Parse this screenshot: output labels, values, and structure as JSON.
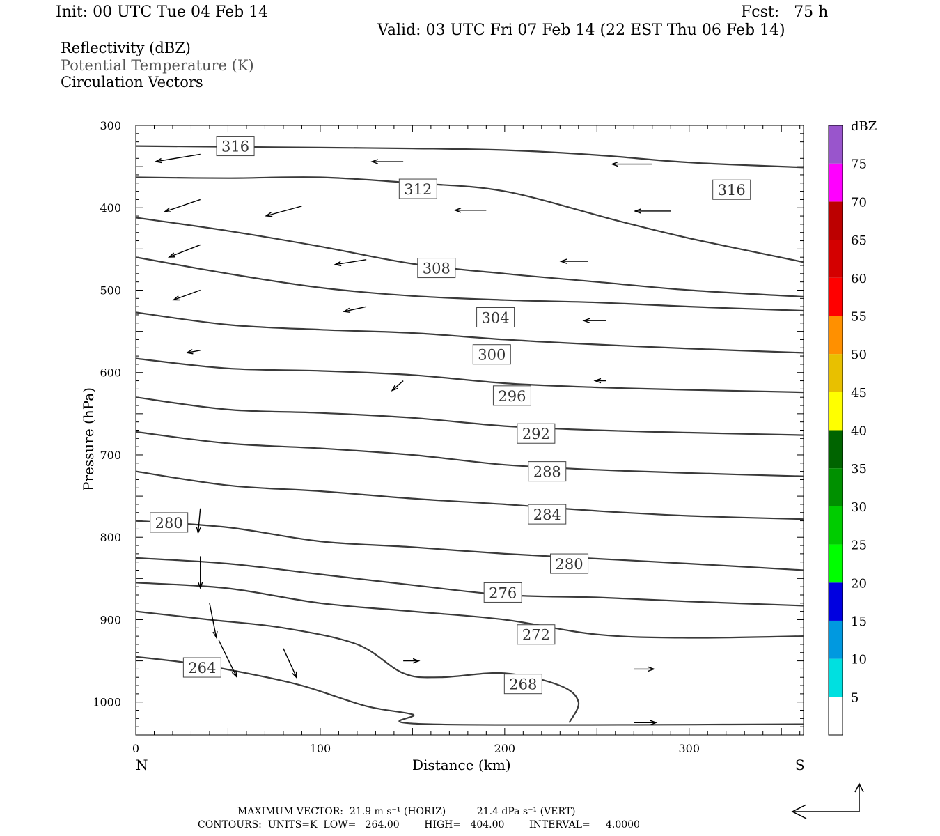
{
  "header": {
    "init": "Init: 00 UTC Tue 04 Feb 14",
    "fcst": "Fcst:   75 h",
    "valid": "Valid: 03 UTC Fri 07 Feb 14 (22 EST Thu 06 Feb 14)"
  },
  "legend_lines": [
    {
      "text": "Reflectivity (dBZ)",
      "color": "#000000"
    },
    {
      "text": "Potential Temperature (K)",
      "color": "#555555"
    },
    {
      "text": "Circulation Vectors",
      "color": "#000000"
    }
  ],
  "footer": {
    "max_vector": "MAXIMUM VECTOR:  21.9 m s⁻¹ (HORIZ)          21.4 dPa s⁻¹ (VERT)",
    "contours": "CONTOURS:  UNITS=K  LOW=   264.00        HIGH=   404.00        INTERVAL=     4.0000"
  },
  "chart_data": {
    "type": "cross-section",
    "xlabel": "Distance (km)",
    "ylabel": "Pressure (hPa)",
    "x_ticks": [
      0,
      100,
      200,
      300
    ],
    "y_ticks": [
      300,
      400,
      500,
      600,
      700,
      800,
      900,
      1000
    ],
    "xlim": [
      0,
      362
    ],
    "ylim": [
      1040,
      300
    ],
    "x_end_labels": {
      "left": "N",
      "right": "S"
    },
    "colorbar": {
      "title": "dBZ",
      "labels": [
        "5",
        "10",
        "15",
        "20",
        "25",
        "30",
        "35",
        "40",
        "45",
        "50",
        "55",
        "60",
        "65",
        "70",
        "75"
      ],
      "colors": [
        "#00e0e0",
        "#0099e0",
        "#0000e0",
        "#00ff00",
        "#00cc00",
        "#009000",
        "#006400",
        "#ffff00",
        "#e8c000",
        "#ff9000",
        "#ff0000",
        "#d40000",
        "#bc0000",
        "#ff00ff",
        "#9955cc"
      ]
    },
    "isentropes": [
      {
        "label": "316",
        "labels_shown": [
          {
            "x": 54,
            "p": 325
          },
          {
            "x": 323,
            "p": 378
          }
        ],
        "points": [
          [
            0,
            325
          ],
          [
            50,
            326
          ],
          [
            100,
            327
          ],
          [
            150,
            328
          ],
          [
            200,
            330
          ],
          [
            250,
            336
          ],
          [
            300,
            345
          ],
          [
            362,
            351
          ]
        ]
      },
      {
        "label": "312",
        "labels_shown": [
          {
            "x": 153,
            "p": 377
          }
        ],
        "points": [
          [
            0,
            363
          ],
          [
            50,
            364
          ],
          [
            100,
            363
          ],
          [
            150,
            370
          ],
          [
            200,
            380
          ],
          [
            260,
            415
          ],
          [
            300,
            437
          ],
          [
            362,
            466
          ]
        ]
      },
      {
        "label": "308",
        "labels_shown": [
          {
            "x": 163,
            "p": 473
          }
        ],
        "points": [
          [
            0,
            412
          ],
          [
            50,
            428
          ],
          [
            100,
            447
          ],
          [
            150,
            468
          ],
          [
            200,
            480
          ],
          [
            250,
            490
          ],
          [
            300,
            500
          ],
          [
            362,
            508
          ]
        ]
      },
      {
        "label": "304",
        "labels_shown": [
          {
            "x": 195,
            "p": 533
          }
        ],
        "points": [
          [
            0,
            460
          ],
          [
            50,
            480
          ],
          [
            100,
            497
          ],
          [
            150,
            507
          ],
          [
            200,
            512
          ],
          [
            250,
            515
          ],
          [
            300,
            520
          ],
          [
            362,
            525
          ]
        ]
      },
      {
        "label": "300",
        "labels_shown": [
          {
            "x": 193,
            "p": 578
          }
        ],
        "points": [
          [
            0,
            527
          ],
          [
            50,
            542
          ],
          [
            100,
            548
          ],
          [
            150,
            552
          ],
          [
            200,
            560
          ],
          [
            250,
            566
          ],
          [
            300,
            571
          ],
          [
            362,
            576
          ]
        ]
      },
      {
        "label": "296",
        "labels_shown": [
          {
            "x": 204,
            "p": 628
          }
        ],
        "points": [
          [
            0,
            583
          ],
          [
            50,
            595
          ],
          [
            100,
            598
          ],
          [
            150,
            603
          ],
          [
            200,
            613
          ],
          [
            250,
            618
          ],
          [
            300,
            621
          ],
          [
            362,
            624
          ]
        ]
      },
      {
        "label": "292",
        "labels_shown": [
          {
            "x": 217,
            "p": 674
          }
        ],
        "points": [
          [
            0,
            630
          ],
          [
            50,
            645
          ],
          [
            100,
            649
          ],
          [
            150,
            655
          ],
          [
            200,
            665
          ],
          [
            250,
            670
          ],
          [
            300,
            673
          ],
          [
            362,
            676
          ]
        ]
      },
      {
        "label": "288",
        "labels_shown": [
          {
            "x": 223,
            "p": 720
          }
        ],
        "points": [
          [
            0,
            672
          ],
          [
            50,
            686
          ],
          [
            100,
            692
          ],
          [
            150,
            700
          ],
          [
            200,
            712
          ],
          [
            250,
            718
          ],
          [
            300,
            722
          ],
          [
            362,
            726
          ]
        ]
      },
      {
        "label": "284",
        "labels_shown": [
          {
            "x": 223,
            "p": 772
          }
        ],
        "points": [
          [
            0,
            720
          ],
          [
            50,
            737
          ],
          [
            100,
            744
          ],
          [
            150,
            753
          ],
          [
            200,
            760
          ],
          [
            250,
            768
          ],
          [
            300,
            774
          ],
          [
            362,
            778
          ]
        ]
      },
      {
        "label": "280",
        "labels_shown": [
          {
            "x": 18,
            "p": 782
          },
          {
            "x": 235,
            "p": 832
          }
        ],
        "points": [
          [
            0,
            780
          ],
          [
            50,
            788
          ],
          [
            100,
            805
          ],
          [
            150,
            812
          ],
          [
            200,
            820
          ],
          [
            250,
            826
          ],
          [
            300,
            832
          ],
          [
            362,
            840
          ]
        ]
      },
      {
        "label": "276",
        "labels_shown": [
          {
            "x": 199,
            "p": 867
          }
        ],
        "points": [
          [
            0,
            825
          ],
          [
            50,
            832
          ],
          [
            100,
            845
          ],
          [
            150,
            858
          ],
          [
            200,
            870
          ],
          [
            250,
            873
          ],
          [
            300,
            878
          ],
          [
            362,
            883
          ]
        ]
      },
      {
        "label": "272",
        "labels_shown": [
          {
            "x": 217,
            "p": 918
          }
        ],
        "points": [
          [
            0,
            855
          ],
          [
            50,
            862
          ],
          [
            100,
            880
          ],
          [
            150,
            890
          ],
          [
            200,
            900
          ],
          [
            250,
            918
          ],
          [
            300,
            922
          ],
          [
            362,
            920
          ]
        ]
      },
      {
        "label": "268",
        "labels_shown": [
          {
            "x": 210,
            "p": 978
          }
        ],
        "points": [
          [
            0,
            890
          ],
          [
            40,
            900
          ],
          [
            80,
            910
          ],
          [
            120,
            930
          ],
          [
            145,
            965
          ],
          [
            165,
            970
          ],
          [
            200,
            965
          ],
          [
            230,
            980
          ],
          [
            240,
            1000
          ],
          [
            235,
            1025
          ]
        ]
      },
      {
        "label": "264",
        "labels_shown": [
          {
            "x": 36,
            "p": 958
          }
        ],
        "points": [
          [
            0,
            945
          ],
          [
            30,
            953
          ],
          [
            60,
            965
          ],
          [
            90,
            980
          ],
          [
            125,
            1005
          ],
          [
            150,
            1015
          ],
          [
            160,
            1027
          ],
          [
            362,
            1027
          ]
        ]
      }
    ],
    "vectors": [
      {
        "x": 35,
        "p": 335,
        "u": -20,
        "w": 0.3
      },
      {
        "x": 145,
        "p": 344,
        "u": -14,
        "w": 0.0
      },
      {
        "x": 280,
        "p": 347,
        "u": -18,
        "w": 0.0
      },
      {
        "x": 35,
        "p": 390,
        "u": -16,
        "w": 0.5
      },
      {
        "x": 90,
        "p": 398,
        "u": -16,
        "w": 0.4
      },
      {
        "x": 190,
        "p": 403,
        "u": -14,
        "w": 0.0
      },
      {
        "x": 290,
        "p": 404,
        "u": -16,
        "w": 0.0
      },
      {
        "x": 35,
        "p": 445,
        "u": -14,
        "w": 0.5
      },
      {
        "x": 125,
        "p": 463,
        "u": -14,
        "w": 0.2
      },
      {
        "x": 245,
        "p": 465,
        "u": -12,
        "w": 0.0
      },
      {
        "x": 35,
        "p": 500,
        "u": -12,
        "w": 0.4
      },
      {
        "x": 125,
        "p": 520,
        "u": -10,
        "w": 0.2
      },
      {
        "x": 255,
        "p": 537,
        "u": -10,
        "w": 0.0
      },
      {
        "x": 35,
        "p": 573,
        "u": -6,
        "w": 0.1
      },
      {
        "x": 145,
        "p": 610,
        "u": -5,
        "w": 0.4
      },
      {
        "x": 255,
        "p": 610,
        "u": -5,
        "w": 0.0
      },
      {
        "x": 35,
        "p": 765,
        "u": -1,
        "w": 1.0
      },
      {
        "x": 35,
        "p": 823,
        "u": 0,
        "w": 1.3
      },
      {
        "x": 40,
        "p": 880,
        "u": 3,
        "w": 1.4
      },
      {
        "x": 45,
        "p": 925,
        "u": 8,
        "w": 1.5
      },
      {
        "x": 80,
        "p": 935,
        "u": 6,
        "w": 1.2
      },
      {
        "x": 145,
        "p": 950,
        "u": 7,
        "w": 0.0
      },
      {
        "x": 270,
        "p": 960,
        "u": 9,
        "w": 0.0
      },
      {
        "x": 270,
        "p": 1025,
        "u": 10,
        "w": 0.0
      }
    ]
  }
}
